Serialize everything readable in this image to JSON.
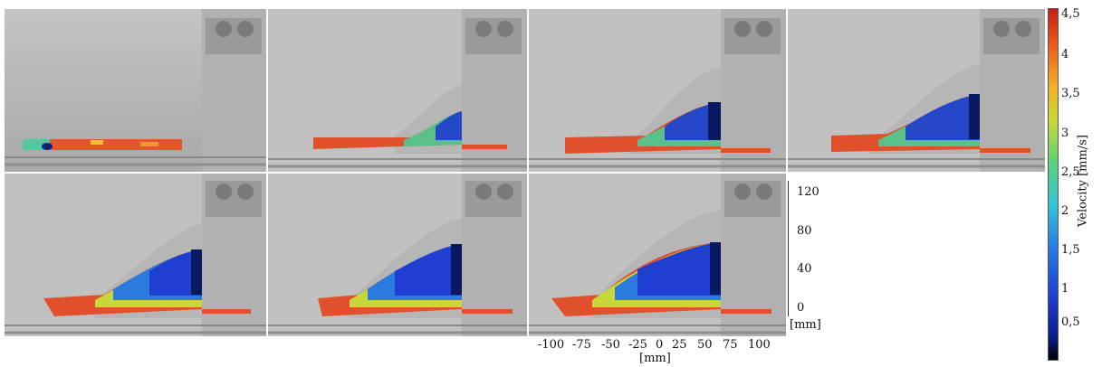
{
  "colorbar": {
    "title": "Velocity [mm/s]",
    "ticks": [
      "4,5",
      "4",
      "3,5",
      "3",
      "2,5",
      "2",
      "1,5",
      "1",
      "0,5"
    ],
    "colors": [
      "#000000",
      "#0a1a80",
      "#1f3fd0",
      "#2a7ae0",
      "#33c3d8",
      "#5ad27a",
      "#c8d83a",
      "#f0b028",
      "#ea5a1e",
      "#c81d14"
    ]
  },
  "y_axis": {
    "ticks": [
      "120",
      "80",
      "40",
      "0"
    ],
    "unit": "[mm]"
  },
  "x_axis": {
    "ticks": [
      "-100",
      "-75",
      "-50",
      "-25",
      "0",
      "25",
      "50",
      "75",
      "100"
    ],
    "unit": "[mm]"
  },
  "panels": [
    {
      "id": 1,
      "fill": 0.0
    },
    {
      "id": 2,
      "fill": 0.35
    },
    {
      "id": 3,
      "fill": 0.55
    },
    {
      "id": 4,
      "fill": 0.7
    },
    {
      "id": 5,
      "fill": 0.8
    },
    {
      "id": 6,
      "fill": 0.9
    },
    {
      "id": 7,
      "fill": 1.0
    }
  ]
}
